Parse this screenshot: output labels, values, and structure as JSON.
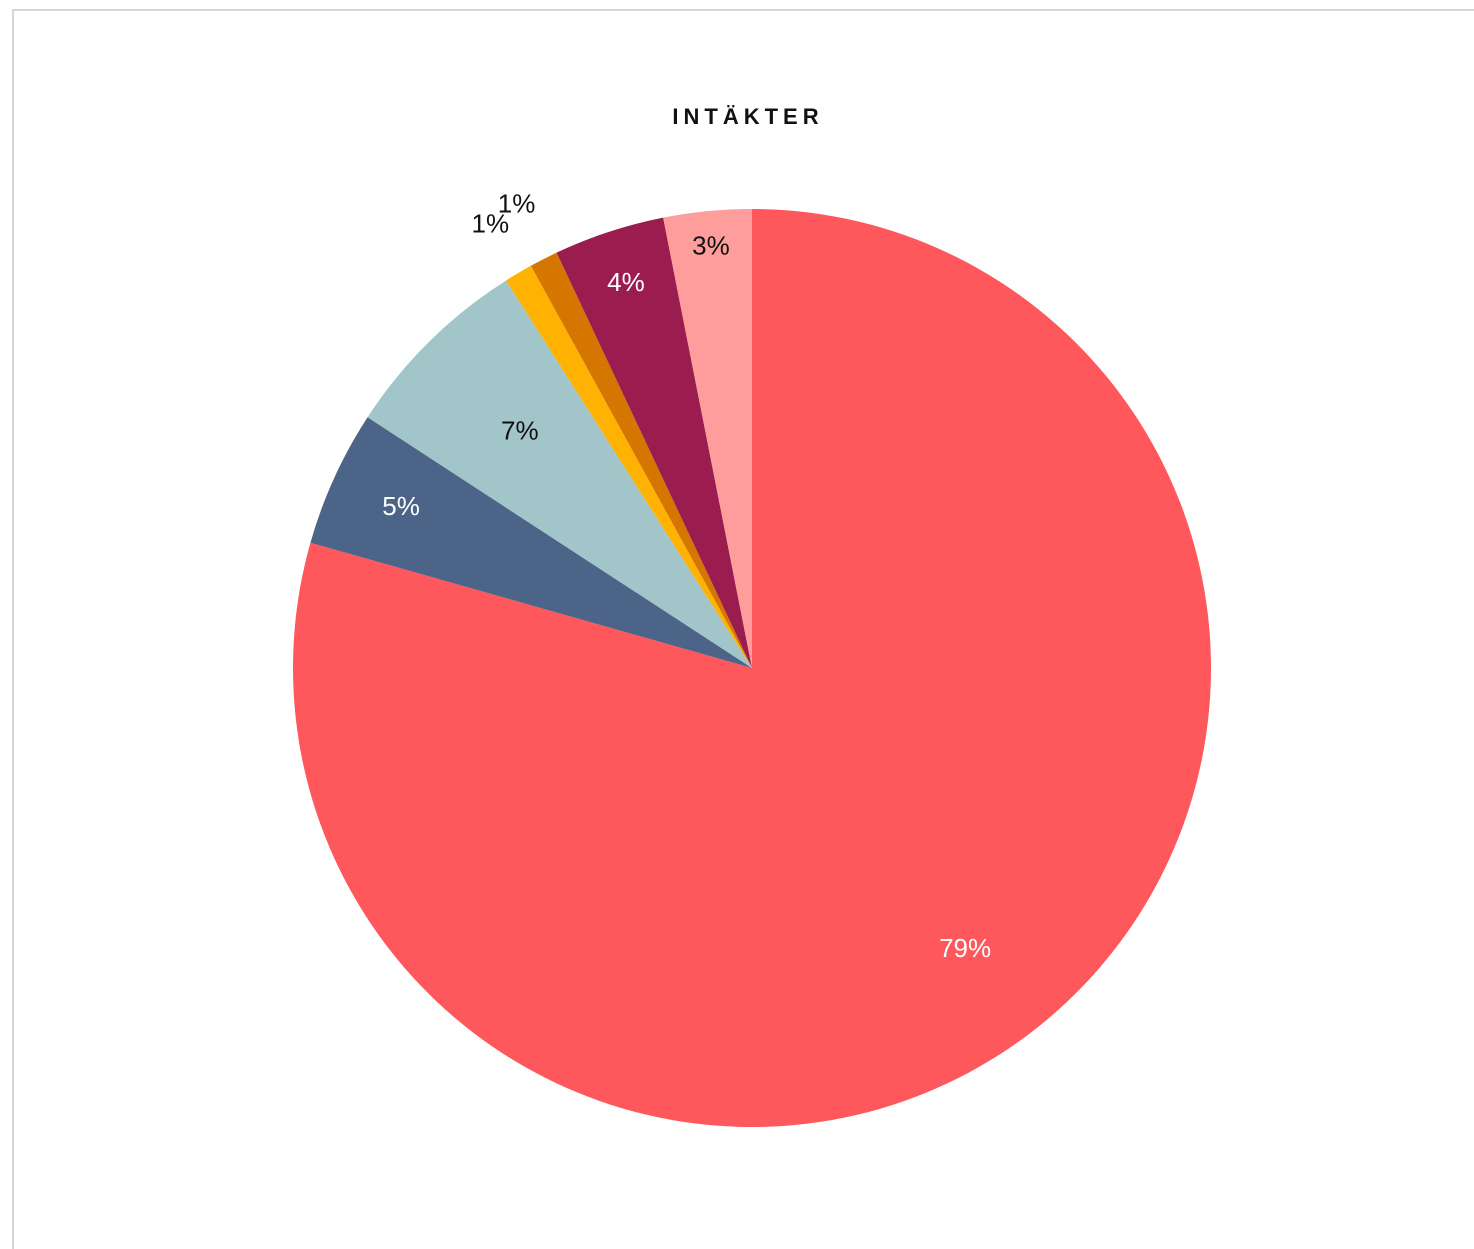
{
  "chart_data": {
    "type": "pie",
    "title": "INTÄKTER",
    "start_angle_deg": 0,
    "direction": "clockwise",
    "slices": [
      {
        "label": "79%",
        "value": 79.4,
        "color": "#fe575c",
        "label_color": "#ffffff"
      },
      {
        "label": "5%",
        "value": 4.8,
        "color": "#4c6488",
        "label_color": "#ffffff"
      },
      {
        "label": "7%",
        "value": 6.8,
        "color": "#a1c5c9",
        "label_color": "#111111"
      },
      {
        "label": "1%",
        "value": 1.0,
        "color": "#ffb201",
        "label_color": "#111111"
      },
      {
        "label": "1%",
        "value": 1.0,
        "color": "#d57600",
        "label_color": "#111111"
      },
      {
        "label": "4%",
        "value": 3.9,
        "color": "#9b1c4f",
        "label_color": "#ffffff"
      },
      {
        "label": "3%",
        "value": 3.1,
        "color": "#ff9c9c",
        "label_color": "#111111"
      }
    ]
  }
}
